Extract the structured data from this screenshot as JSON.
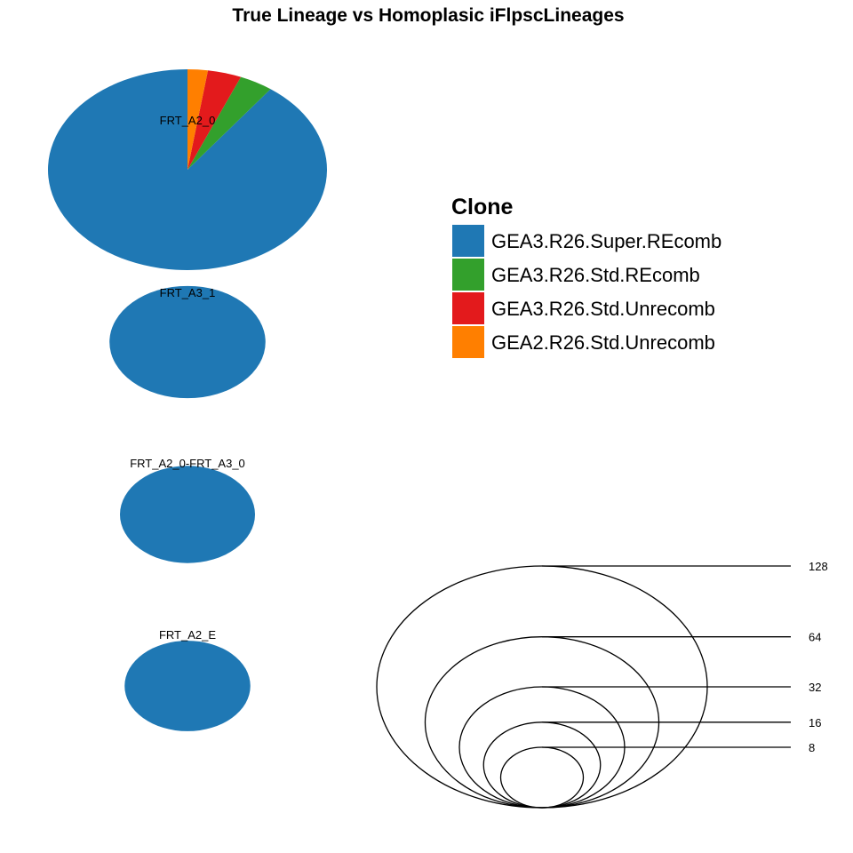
{
  "chart_data": {
    "type": "pie",
    "title": "True Lineage vs Homoplasic iFlpscLineages",
    "legend": {
      "title": "Clone",
      "position": "right",
      "entries": [
        {
          "name": "GEA3.R26.Super.REcomb",
          "color": "#1F78B4"
        },
        {
          "name": "GEA3.R26.Std.REcomb",
          "color": "#33A02C"
        },
        {
          "name": "GEA3.R26.Std.Unrecomb",
          "color": "#E31A1C"
        },
        {
          "name": "GEA2.R26.Std.Unrecomb",
          "color": "#FF7F00"
        }
      ]
    },
    "pies": [
      {
        "label": "FRT_A2_0",
        "total": 128,
        "slices": [
          {
            "clone": "GEA3.R26.Super.REcomb",
            "value": 115
          },
          {
            "clone": "GEA3.R26.Std.REcomb",
            "value": 5
          },
          {
            "clone": "GEA3.R26.Std.Unrecomb",
            "value": 5
          },
          {
            "clone": "GEA2.R26.Std.Unrecomb",
            "value": 3
          }
        ]
      },
      {
        "label": "FRT_A3_1",
        "total": 40,
        "slices": [
          {
            "clone": "GEA3.R26.Super.REcomb",
            "value": 40
          }
        ]
      },
      {
        "label": "FRT_A2_0-FRT_A3_0",
        "total": 30,
        "slices": [
          {
            "clone": "GEA3.R26.Super.REcomb",
            "value": 30
          }
        ]
      },
      {
        "label": "FRT_A2_E",
        "total": 26,
        "slices": [
          {
            "clone": "GEA3.R26.Super.REcomb",
            "value": 26
          }
        ]
      }
    ],
    "size_legend": {
      "values": [
        128,
        64,
        32,
        16,
        8
      ]
    }
  }
}
